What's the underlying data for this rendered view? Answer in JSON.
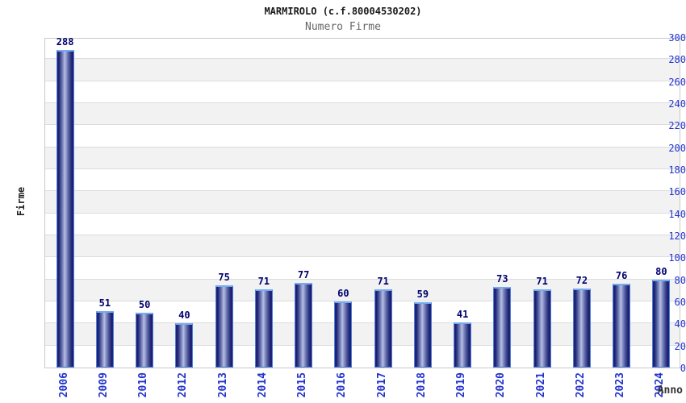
{
  "header": {
    "title": "MARMIROLO (c.f.80004530202)",
    "subtitle": "Numero Firme"
  },
  "chart_data": {
    "type": "bar",
    "title": "MARMIROLO (c.f.80004530202)",
    "subtitle": "Numero Firme",
    "categories": [
      "2006",
      "2009",
      "2010",
      "2012",
      "2013",
      "2014",
      "2015",
      "2016",
      "2017",
      "2018",
      "2019",
      "2020",
      "2021",
      "2022",
      "2023",
      "2024"
    ],
    "values": [
      288,
      51,
      50,
      40,
      75,
      71,
      77,
      60,
      71,
      59,
      41,
      73,
      71,
      72,
      76,
      80
    ],
    "xlabel": "Anno",
    "ylabel": "Firme",
    "ylim": [
      0,
      300
    ],
    "ytick_step": 20,
    "grid": true,
    "band_fill": "alternating",
    "legend": "none",
    "colors": {
      "bar_edge_dark": "#1b1e6e",
      "bar_center_light": "#b7bfe6",
      "bar_outline": "#4d7fd9",
      "bar_top_highlight": "#74aaf0",
      "tick_label": "#2233cc",
      "value_label": "#000070",
      "band_gray": "#f2f2f2",
      "gridline": "#dcdcdc",
      "subtitle_gray": "#666666"
    }
  }
}
